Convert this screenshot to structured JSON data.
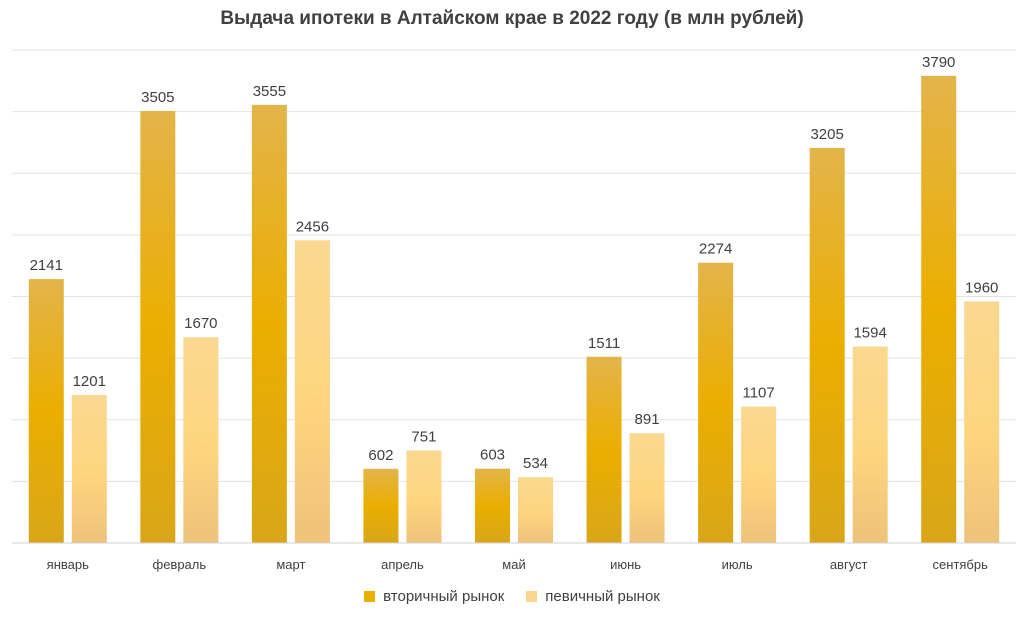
{
  "chart_data": {
    "type": "bar",
    "title": "Выдача ипотеки в Алтайском крае в 2022 году (в млн рублей)",
    "categories": [
      "январь",
      "февраль",
      "март",
      "апрель",
      "май",
      "июнь",
      "июль",
      "август",
      "сентябрь"
    ],
    "series": [
      {
        "name": "вторичный рынок",
        "values": [
          2141,
          3505,
          3555,
          602,
          603,
          1511,
          2274,
          3205,
          3790
        ],
        "color": "#E8B000"
      },
      {
        "name": "певичный рынок",
        "values": [
          1201,
          1670,
          2456,
          751,
          534,
          891,
          1107,
          1594,
          1960
        ],
        "color": "#FCD68C"
      }
    ],
    "ylim": [
      0,
      4000
    ],
    "grid": true,
    "legend_position": "bottom",
    "data_labels": true
  }
}
